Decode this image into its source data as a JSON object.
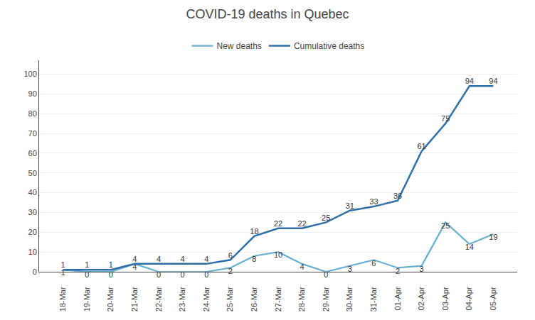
{
  "chart_data": {
    "type": "line",
    "title": "COVID-19 deaths in Quebec",
    "categories": [
      "18-Mar",
      "19-Mar",
      "20-Mar",
      "21-Mar",
      "22-Mar",
      "23-Mar",
      "24-Mar",
      "25-Mar",
      "26-Mar",
      "27-Mar",
      "28-Mar",
      "29-Mar",
      "30-Mar",
      "31-Mar",
      "01-Apr",
      "02-Apr",
      "03-Apr",
      "04-Apr",
      "05-Apr"
    ],
    "series": [
      {
        "name": "New deaths",
        "color": "#6aaed0",
        "values": [
          1,
          0,
          0,
          4,
          0,
          0,
          0,
          2,
          8,
          10,
          4,
          0,
          3,
          6,
          2,
          3,
          25,
          14,
          19
        ]
      },
      {
        "name": "Cumulative deaths",
        "color": "#2e6ea6",
        "values": [
          1,
          1,
          1,
          4,
          4,
          4,
          4,
          6,
          18,
          22,
          22,
          25,
          31,
          33,
          36,
          61,
          75,
          94,
          94
        ]
      }
    ],
    "ylim": [
      0,
      107
    ],
    "yticks": [
      0,
      10,
      20,
      30,
      40,
      50,
      60,
      70,
      80,
      90,
      100
    ],
    "grid": true,
    "legend": "top",
    "data_labels": true
  }
}
